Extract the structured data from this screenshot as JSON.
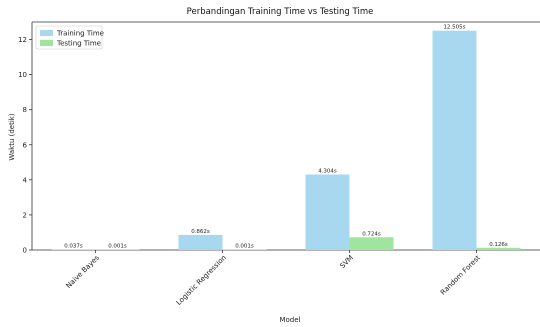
{
  "chart_data": {
    "type": "bar",
    "title": "Perbandingan Training Time vs Testing Time",
    "xlabel": "Model",
    "ylabel": "Waktu (detik)",
    "categories": [
      "Naive Bayes",
      "Logistic Regression",
      "SVM",
      "Random Forest"
    ],
    "series": [
      {
        "name": "Training Time",
        "color": "#a8d8ef",
        "values": [
          0.037,
          0.862,
          4.304,
          12.505
        ],
        "labels": [
          "0.037s",
          "0.862s",
          "4.304s",
          "12.505s"
        ]
      },
      {
        "name": "Testing Time",
        "color": "#9ee59e",
        "values": [
          0.001,
          0.001,
          0.724,
          0.126
        ],
        "labels": [
          "0.001s",
          "0.001s",
          "0.724s",
          "0.126s"
        ]
      }
    ],
    "ylim": [
      0,
      13
    ],
    "yticks": [
      0,
      2,
      4,
      6,
      8,
      10,
      12
    ],
    "grid": false,
    "legend_position": "top-left"
  }
}
